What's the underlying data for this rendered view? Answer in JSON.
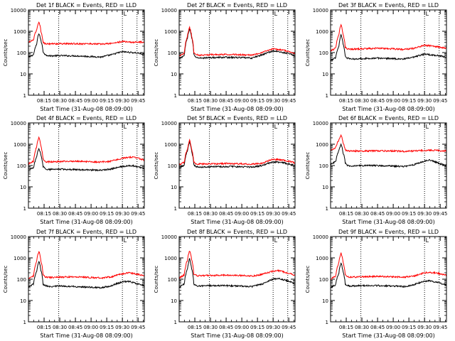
{
  "figure": {
    "x_tick_labels": [
      "08:15",
      "08:30",
      "08:45",
      "09:00",
      "09:15",
      "09:30",
      "09:45"
    ],
    "x_tick_minutes": [
      15,
      30,
      45,
      60,
      75,
      90,
      105
    ],
    "xlabel": "Start Time (31-Aug-08 08:09:00)",
    "ylabel": "Counts/sec",
    "y_tick_labels": [
      "1",
      "10",
      "100",
      "1000",
      "10000"
    ],
    "y_tick_values": [
      1,
      10,
      100,
      1000,
      10000
    ],
    "marker_label": "L",
    "series_colors": {
      "events": "#000000",
      "lld": "#ff0000"
    }
  },
  "chart_data": [
    {
      "type": "line",
      "title": "Det 1f BLACK = Events, RED = LLD",
      "xlabel": "Start Time (31-Aug-08 08:09:00)",
      "ylabel": "Counts/sec",
      "x_unit": "minutes since 08:09:00",
      "xlim": [
        0,
        111
      ],
      "ylim": [
        1,
        10000
      ],
      "yscale": "log",
      "vlines_minutes": [
        29,
        90,
        104
      ],
      "marker_label": "L",
      "marker_minute": 91,
      "series": [
        {
          "name": "Events",
          "color": "#000000",
          "x": [
            0,
            5,
            8,
            10,
            12,
            14,
            16,
            20,
            30,
            45,
            60,
            70,
            80,
            90,
            95,
            100,
            105,
            111
          ],
          "values": [
            60,
            80,
            250,
            800,
            350,
            110,
            80,
            70,
            72,
            70,
            65,
            62,
            80,
            110,
            105,
            100,
            95,
            80
          ]
        },
        {
          "name": "LLD",
          "color": "#ff0000",
          "x": [
            0,
            5,
            8,
            10,
            12,
            14,
            16,
            20,
            30,
            45,
            60,
            70,
            80,
            90,
            95,
            100,
            105,
            111
          ],
          "values": [
            300,
            400,
            1200,
            2800,
            1000,
            300,
            260,
            260,
            260,
            260,
            260,
            250,
            270,
            330,
            320,
            300,
            320,
            300
          ]
        }
      ]
    },
    {
      "type": "line",
      "title": "Det 2f BLACK = Events, RED = LLD",
      "xlabel": "Start Time (31-Aug-08 08:09:00)",
      "ylabel": "Counts/sec",
      "x_unit": "minutes since 08:09:00",
      "xlim": [
        0,
        111
      ],
      "ylim": [
        1,
        10000
      ],
      "yscale": "log",
      "vlines_minutes": [
        29,
        90,
        104
      ],
      "marker_label": "L",
      "marker_minute": 91,
      "series": [
        {
          "name": "Events",
          "color": "#000000",
          "x": [
            0,
            5,
            8,
            10,
            12,
            14,
            16,
            20,
            30,
            45,
            60,
            70,
            80,
            90,
            95,
            100,
            105,
            111
          ],
          "values": [
            50,
            70,
            500,
            1300,
            500,
            80,
            60,
            55,
            58,
            60,
            58,
            55,
            80,
            120,
            110,
            100,
            90,
            70
          ]
        },
        {
          "name": "LLD",
          "color": "#ff0000",
          "x": [
            0,
            5,
            8,
            10,
            12,
            14,
            16,
            20,
            30,
            45,
            60,
            70,
            80,
            90,
            95,
            100,
            105,
            111
          ],
          "values": [
            70,
            90,
            600,
            1500,
            600,
            100,
            80,
            75,
            80,
            82,
            80,
            75,
            100,
            150,
            140,
            130,
            110,
            90
          ]
        }
      ]
    },
    {
      "type": "line",
      "title": "Det 3f BLACK = Events, RED = LLD",
      "xlabel": "Start Time (31-Aug-08 08:09:00)",
      "ylabel": "Counts/sec",
      "x_unit": "minutes since 08:09:00",
      "xlim": [
        0,
        111
      ],
      "ylim": [
        1,
        10000
      ],
      "yscale": "log",
      "vlines_minutes": [
        29,
        90,
        104
      ],
      "marker_label": "L",
      "marker_minute": 91,
      "series": [
        {
          "name": "Events",
          "color": "#000000",
          "x": [
            0,
            5,
            8,
            10,
            12,
            14,
            16,
            20,
            30,
            45,
            60,
            70,
            80,
            90,
            95,
            100,
            105,
            111
          ],
          "values": [
            40,
            60,
            200,
            700,
            250,
            70,
            55,
            50,
            52,
            55,
            52,
            50,
            60,
            85,
            80,
            75,
            70,
            60
          ]
        },
        {
          "name": "LLD",
          "color": "#ff0000",
          "x": [
            0,
            5,
            8,
            10,
            12,
            14,
            16,
            20,
            30,
            45,
            60,
            70,
            80,
            90,
            95,
            100,
            105,
            111
          ],
          "values": [
            120,
            160,
            700,
            2000,
            700,
            180,
            150,
            145,
            150,
            160,
            150,
            140,
            160,
            220,
            210,
            190,
            180,
            160
          ]
        }
      ]
    },
    {
      "type": "line",
      "title": "Det 4f BLACK = Events, RED = LLD",
      "xlabel": "Start Time (31-Aug-08 08:09:00)",
      "ylabel": "Counts/sec",
      "x_unit": "minutes since 08:09:00",
      "xlim": [
        0,
        111
      ],
      "ylim": [
        1,
        10000
      ],
      "yscale": "log",
      "vlines_minutes": [
        29,
        90,
        104
      ],
      "marker_label": "L",
      "marker_minute": 91,
      "series": [
        {
          "name": "Events",
          "color": "#000000",
          "x": [
            0,
            5,
            8,
            10,
            12,
            14,
            16,
            20,
            30,
            45,
            60,
            70,
            80,
            90,
            95,
            100,
            105,
            111
          ],
          "values": [
            60,
            80,
            250,
            650,
            300,
            90,
            70,
            65,
            68,
            65,
            62,
            60,
            70,
            90,
            95,
            100,
            85,
            70
          ]
        },
        {
          "name": "LLD",
          "color": "#ff0000",
          "x": [
            0,
            5,
            8,
            10,
            12,
            14,
            16,
            20,
            30,
            45,
            60,
            70,
            80,
            90,
            95,
            100,
            105,
            111
          ],
          "values": [
            120,
            160,
            800,
            2200,
            800,
            200,
            150,
            150,
            155,
            160,
            150,
            145,
            160,
            220,
            240,
            250,
            220,
            180
          ]
        }
      ]
    },
    {
      "type": "line",
      "title": "Det 5f BLACK = Events, RED = LLD",
      "xlabel": "Start Time (31-Aug-08 08:09:00)",
      "ylabel": "Counts/sec",
      "x_unit": "minutes since 08:09:00",
      "xlim": [
        0,
        111
      ],
      "ylim": [
        1,
        10000
      ],
      "yscale": "log",
      "vlines_minutes": [
        29,
        90,
        104
      ],
      "marker_label": "L",
      "marker_minute": 91,
      "series": [
        {
          "name": "Events",
          "color": "#000000",
          "x": [
            0,
            5,
            8,
            10,
            12,
            14,
            16,
            20,
            30,
            45,
            60,
            70,
            80,
            90,
            95,
            100,
            105,
            111
          ],
          "values": [
            80,
            100,
            500,
            1200,
            450,
            110,
            90,
            85,
            88,
            90,
            88,
            85,
            100,
            150,
            145,
            135,
            120,
            100
          ]
        },
        {
          "name": "LLD",
          "color": "#ff0000",
          "x": [
            0,
            5,
            8,
            10,
            12,
            14,
            16,
            20,
            30,
            45,
            60,
            70,
            80,
            90,
            95,
            100,
            105,
            111
          ],
          "values": [
            110,
            140,
            600,
            1500,
            550,
            150,
            120,
            118,
            120,
            125,
            120,
            115,
            130,
            200,
            190,
            180,
            160,
            130
          ]
        }
      ]
    },
    {
      "type": "line",
      "title": "Det 6f BLACK = Events, RED = LLD",
      "xlabel": "Start Time (31-Aug-08 08:09:00)",
      "ylabel": "Counts/sec",
      "x_unit": "minutes since 08:09:00",
      "xlim": [
        0,
        111
      ],
      "ylim": [
        1,
        10000
      ],
      "yscale": "log",
      "vlines_minutes": [
        29,
        90,
        104
      ],
      "marker_label": "L",
      "marker_minute": 91,
      "series": [
        {
          "name": "Events",
          "color": "#000000",
          "x": [
            0,
            5,
            8,
            10,
            12,
            14,
            16,
            20,
            30,
            45,
            60,
            70,
            80,
            90,
            95,
            100,
            105,
            111
          ],
          "values": [
            120,
            150,
            500,
            1000,
            400,
            130,
            100,
            95,
            100,
            100,
            95,
            90,
            110,
            160,
            180,
            150,
            120,
            100
          ]
        },
        {
          "name": "LLD",
          "color": "#ff0000",
          "x": [
            0,
            5,
            8,
            10,
            12,
            14,
            16,
            20,
            30,
            45,
            60,
            70,
            80,
            90,
            95,
            100,
            105,
            111
          ],
          "values": [
            500,
            700,
            1600,
            2600,
            1200,
            520,
            480,
            480,
            480,
            490,
            480,
            470,
            480,
            510,
            520,
            520,
            500,
            480
          ]
        }
      ]
    },
    {
      "type": "line",
      "title": "Det 7f BLACK = Events, RED = LLD",
      "xlabel": "Start Time (31-Aug-08 08:09:00)",
      "ylabel": "Counts/sec",
      "x_unit": "minutes since 08:09:00",
      "xlim": [
        0,
        111
      ],
      "ylim": [
        1,
        10000
      ],
      "yscale": "log",
      "vlines_minutes": [
        29,
        90,
        104
      ],
      "marker_label": "L",
      "marker_minute": 91,
      "series": [
        {
          "name": "Events",
          "color": "#000000",
          "x": [
            0,
            5,
            8,
            10,
            12,
            14,
            16,
            20,
            30,
            45,
            60,
            70,
            80,
            90,
            95,
            100,
            105,
            111
          ],
          "values": [
            40,
            60,
            250,
            700,
            250,
            60,
            50,
            45,
            48,
            45,
            42,
            40,
            50,
            75,
            80,
            70,
            60,
            50
          ]
        },
        {
          "name": "LLD",
          "color": "#ff0000",
          "x": [
            0,
            5,
            8,
            10,
            12,
            14,
            16,
            20,
            30,
            45,
            60,
            70,
            80,
            90,
            95,
            100,
            105,
            111
          ],
          "values": [
            100,
            150,
            700,
            2000,
            700,
            160,
            130,
            120,
            125,
            130,
            120,
            115,
            130,
            180,
            200,
            190,
            170,
            140
          ]
        }
      ]
    },
    {
      "type": "line",
      "title": "Det 8f BLACK = Events, RED = LLD",
      "xlabel": "Start Time (31-Aug-08 08:09:00)",
      "ylabel": "Counts/sec",
      "x_unit": "minutes since 08:09:00",
      "xlim": [
        0,
        111
      ],
      "ylim": [
        1,
        10000
      ],
      "yscale": "log",
      "vlines_minutes": [
        29,
        90,
        104
      ],
      "marker_label": "L",
      "marker_minute": 91,
      "series": [
        {
          "name": "Events",
          "color": "#000000",
          "x": [
            0,
            5,
            8,
            10,
            12,
            14,
            16,
            20,
            30,
            45,
            60,
            70,
            80,
            90,
            95,
            100,
            105,
            111
          ],
          "values": [
            40,
            60,
            300,
            900,
            300,
            60,
            50,
            48,
            50,
            50,
            48,
            45,
            60,
            100,
            110,
            95,
            80,
            60
          ]
        },
        {
          "name": "LLD",
          "color": "#ff0000",
          "x": [
            0,
            5,
            8,
            10,
            12,
            14,
            16,
            20,
            30,
            45,
            60,
            70,
            80,
            90,
            95,
            100,
            105,
            111
          ],
          "values": [
            110,
            160,
            800,
            2200,
            800,
            180,
            150,
            145,
            150,
            155,
            150,
            140,
            170,
            240,
            250,
            220,
            190,
            150
          ]
        }
      ]
    },
    {
      "type": "line",
      "title": "Det 9f BLACK = Events, RED = LLD",
      "xlabel": "Start Time (31-Aug-08 08:09:00)",
      "ylabel": "Counts/sec",
      "x_unit": "minutes since 08:09:00",
      "xlim": [
        0,
        111
      ],
      "ylim": [
        1,
        10000
      ],
      "yscale": "log",
      "vlines_minutes": [
        29,
        90,
        104
      ],
      "marker_label": "L",
      "marker_minute": 91,
      "series": [
        {
          "name": "Events",
          "color": "#000000",
          "x": [
            0,
            5,
            8,
            10,
            12,
            14,
            16,
            20,
            30,
            45,
            60,
            70,
            80,
            90,
            95,
            100,
            105,
            111
          ],
          "values": [
            40,
            55,
            200,
            550,
            220,
            60,
            50,
            48,
            50,
            50,
            48,
            45,
            55,
            80,
            85,
            75,
            65,
            55
          ]
        },
        {
          "name": "LLD",
          "color": "#ff0000",
          "x": [
            0,
            5,
            8,
            10,
            12,
            14,
            16,
            20,
            30,
            45,
            60,
            70,
            80,
            90,
            95,
            100,
            105,
            111
          ],
          "values": [
            100,
            140,
            600,
            1700,
            600,
            160,
            130,
            125,
            130,
            135,
            130,
            125,
            140,
            200,
            210,
            200,
            180,
            150
          ]
        }
      ]
    }
  ]
}
